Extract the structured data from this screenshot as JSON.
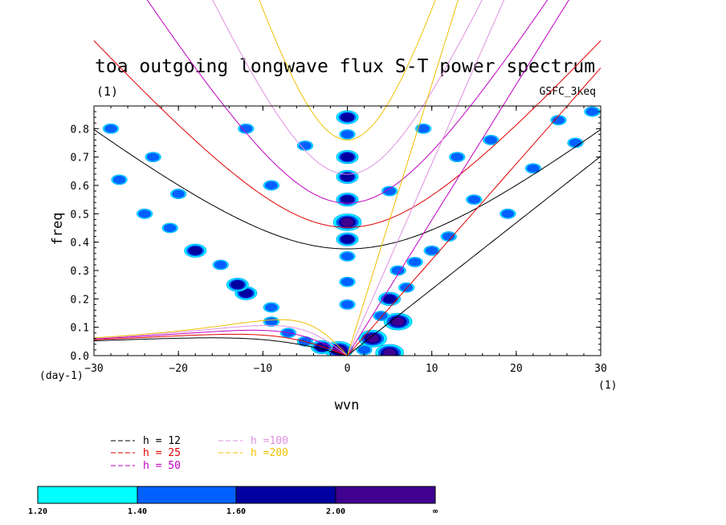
{
  "chart_data": {
    "type": "contour",
    "title": "toa outgoing longwave flux S-T power spectrum",
    "subtitle_left": "(1)",
    "subtitle_right": "GSFC_3keq",
    "xlabel": "wvn",
    "ylabel": "freq",
    "x_units": "(1)",
    "y_units": "(day-1)",
    "xlim": [
      -30,
      30
    ],
    "ylim": [
      0.0,
      0.88
    ],
    "xticks": [
      -30,
      -20,
      -10,
      0,
      10,
      20,
      30
    ],
    "yticks": [
      0.0,
      0.1,
      0.2,
      0.3,
      0.4,
      0.5,
      0.6,
      0.7,
      0.8
    ],
    "ytick_labels": [
      "0.0",
      "0.1",
      "0.2",
      "0.3",
      "0.4",
      "0.5",
      "0.6",
      "0.7",
      "0.8"
    ],
    "dispersion_curves": [
      {
        "label": "h = 12",
        "h": 12,
        "color": "#000000"
      },
      {
        "label": "h = 25",
        "h": 25,
        "color": "#e00000"
      },
      {
        "label": "h = 50",
        "h": 50,
        "color": "#c000c0"
      },
      {
        "label": "h =100",
        "h": 100,
        "color": "#e090e0"
      },
      {
        "label": "h =200",
        "h": 200,
        "color": "#f0c000"
      }
    ],
    "colorbar": {
      "levels": [
        "1.20",
        "1.40",
        "1.60",
        "2.00",
        "∞"
      ],
      "colors": [
        "#00ffff",
        "#0060ff",
        "#0000a0",
        "#400090"
      ]
    },
    "spectral_peaks": [
      {
        "k": 0,
        "f": 0.84,
        "level": 2
      },
      {
        "k": 0,
        "f": 0.78,
        "level": 1
      },
      {
        "k": 0,
        "f": 0.7,
        "level": 2
      },
      {
        "k": 0,
        "f": 0.63,
        "level": 2
      },
      {
        "k": 0,
        "f": 0.55,
        "level": 2
      },
      {
        "k": 0,
        "f": 0.47,
        "level": 3
      },
      {
        "k": 0,
        "f": 0.41,
        "level": 2
      },
      {
        "k": 0,
        "f": 0.35,
        "level": 1
      },
      {
        "k": 0,
        "f": 0.26,
        "level": 1
      },
      {
        "k": 0,
        "f": 0.18,
        "level": 1
      },
      {
        "k": -1,
        "f": 0.02,
        "level": 3
      },
      {
        "k": -3,
        "f": 0.03,
        "level": 2
      },
      {
        "k": -5,
        "f": 0.05,
        "level": 1
      },
      {
        "k": -7,
        "f": 0.08,
        "level": 1
      },
      {
        "k": -9,
        "f": 0.12,
        "level": 1
      },
      {
        "k": -9,
        "f": 0.17,
        "level": 1
      },
      {
        "k": -12,
        "f": 0.22,
        "level": 2
      },
      {
        "k": -13,
        "f": 0.25,
        "level": 2
      },
      {
        "k": -15,
        "f": 0.32,
        "level": 1
      },
      {
        "k": -18,
        "f": 0.37,
        "level": 2
      },
      {
        "k": -21,
        "f": 0.45,
        "level": 1
      },
      {
        "k": -24,
        "f": 0.5,
        "level": 1
      },
      {
        "k": -20,
        "f": 0.57,
        "level": 1
      },
      {
        "k": -27,
        "f": 0.62,
        "level": 1
      },
      {
        "k": -23,
        "f": 0.7,
        "level": 1
      },
      {
        "k": -28,
        "f": 0.8,
        "level": 1
      },
      {
        "k": 3,
        "f": 0.06,
        "level": 3
      },
      {
        "k": 2,
        "f": 0.02,
        "level": 1
      },
      {
        "k": 5,
        "f": 0.01,
        "level": 3
      },
      {
        "k": 6,
        "f": 0.12,
        "level": 3
      },
      {
        "k": 5,
        "f": 0.2,
        "level": 2
      },
      {
        "k": 7,
        "f": 0.24,
        "level": 1
      },
      {
        "k": 4,
        "f": 0.14,
        "level": 1
      },
      {
        "k": 6,
        "f": 0.3,
        "level": 1
      },
      {
        "k": 8,
        "f": 0.33,
        "level": 1
      },
      {
        "k": 10,
        "f": 0.37,
        "level": 1
      },
      {
        "k": 12,
        "f": 0.42,
        "level": 1
      },
      {
        "k": 15,
        "f": 0.55,
        "level": 1
      },
      {
        "k": 19,
        "f": 0.5,
        "level": 1
      },
      {
        "k": 22,
        "f": 0.66,
        "level": 1
      },
      {
        "k": 27,
        "f": 0.75,
        "level": 1
      },
      {
        "k": 25,
        "f": 0.83,
        "level": 1
      },
      {
        "k": 9,
        "f": 0.8,
        "level": 1
      },
      {
        "k": 13,
        "f": 0.7,
        "level": 1
      },
      {
        "k": 17,
        "f": 0.76,
        "level": 1
      },
      {
        "k": 5,
        "f": 0.58,
        "level": 1
      },
      {
        "k": -5,
        "f": 0.74,
        "level": 1
      },
      {
        "k": -9,
        "f": 0.6,
        "level": 1
      },
      {
        "k": -12,
        "f": 0.8,
        "level": 1
      },
      {
        "k": 29,
        "f": 0.86,
        "level": 1
      }
    ]
  }
}
